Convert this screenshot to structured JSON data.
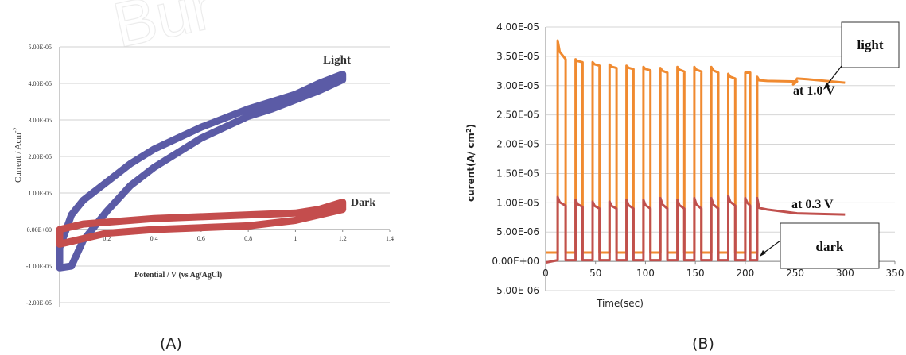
{
  "chart_data": [
    {
      "panel": "(A)",
      "type": "line",
      "xlabel": "Potential / V (vs Ag/AgCl)",
      "ylabel": "Current / Acm",
      "ylabel_sup": "-2",
      "x_ticks": [
        "0",
        "0.2",
        "0.4",
        "0.6",
        "0.8",
        "1",
        "1.2",
        "1.4"
      ],
      "y_ticks": [
        "5.00E-05",
        "4.00E-05",
        "3.00E-05",
        "2.00E-05",
        "1.00E-05",
        "0.00E+00",
        "-1.00E-05",
        "-2.00E-05"
      ],
      "xlim": [
        0,
        1.4
      ],
      "ylim": [
        -2e-05,
        5e-05
      ],
      "grid": true,
      "annotations": [
        "Light",
        "Dark"
      ],
      "series": [
        {
          "name": "Light",
          "color": "#5b5ba6",
          "forward": [
            [
              0,
              -1.05e-05
            ],
            [
              0.05,
              -1e-05
            ],
            [
              0.1,
              -3e-06
            ],
            [
              0.2,
              5e-06
            ],
            [
              0.3,
              1.2e-05
            ],
            [
              0.4,
              1.7e-05
            ],
            [
              0.5,
              2.1e-05
            ],
            [
              0.6,
              2.5e-05
            ],
            [
              0.7,
              2.8e-05
            ],
            [
              0.8,
              3.1e-05
            ],
            [
              0.9,
              3.3e-05
            ],
            [
              1.0,
              3.55e-05
            ],
            [
              1.1,
              3.8e-05
            ],
            [
              1.2,
              4.1e-05
            ]
          ],
          "reverse": [
            [
              1.2,
              4.25e-05
            ],
            [
              1.1,
              4e-05
            ],
            [
              1.0,
              3.7e-05
            ],
            [
              0.9,
              3.5e-05
            ],
            [
              0.8,
              3.3e-05
            ],
            [
              0.7,
              3.05e-05
            ],
            [
              0.6,
              2.8e-05
            ],
            [
              0.5,
              2.5e-05
            ],
            [
              0.4,
              2.2e-05
            ],
            [
              0.3,
              1.8e-05
            ],
            [
              0.2,
              1.3e-05
            ],
            [
              0.1,
              8e-06
            ],
            [
              0.05,
              4e-06
            ],
            [
              0,
              -5e-06
            ]
          ]
        },
        {
          "name": "Dark",
          "color": "#c44d4d",
          "forward": [
            [
              0,
              -4e-06
            ],
            [
              0.1,
              -2.5e-06
            ],
            [
              0.2,
              -1e-06
            ],
            [
              0.4,
              0.0
            ],
            [
              0.6,
              5e-07
            ],
            [
              0.8,
              1e-06
            ],
            [
              1.0,
              2.5e-06
            ],
            [
              1.1,
              4e-06
            ],
            [
              1.2,
              5.5e-06
            ]
          ],
          "reverse": [
            [
              1.2,
              7.5e-06
            ],
            [
              1.1,
              5.5e-06
            ],
            [
              1.0,
              4.5e-06
            ],
            [
              0.8,
              4e-06
            ],
            [
              0.6,
              3.5e-06
            ],
            [
              0.4,
              3e-06
            ],
            [
              0.2,
              2e-06
            ],
            [
              0.1,
              1.5e-06
            ],
            [
              0,
              0.0
            ]
          ]
        }
      ]
    },
    {
      "panel": "(B)",
      "type": "line",
      "xlabel": "Time(sec)",
      "ylabel": "curent(A/ cm",
      "ylabel_sup": "2",
      "ylabel_tail": ")",
      "x_ticks": [
        "0",
        "50",
        "100",
        "150",
        "200",
        "250",
        "300",
        "350"
      ],
      "y_ticks": [
        "4.00E-05",
        "3.50E-05",
        "3.00E-05",
        "2.50E-05",
        "2.00E-05",
        "1.50E-05",
        "1.00E-05",
        "5.00E-06",
        "0.00E+00",
        "-5.00E-06"
      ],
      "xlim": [
        0,
        350
      ],
      "ylim": [
        -5e-06,
        4e-05
      ],
      "grid": true,
      "annotations": {
        "light": "light",
        "at_1v": "at 1.0 V",
        "at_03v": "at 0.3 V",
        "dark": "dark"
      },
      "series": [
        {
          "name": "at 1.0 V",
          "color": "#f08a30",
          "on_intervals": [
            [
              12,
              20
            ],
            [
              30,
              37
            ],
            [
              47,
              54
            ],
            [
              64,
              71
            ],
            [
              81,
              88
            ],
            [
              98,
              105
            ],
            [
              115,
              122
            ],
            [
              132,
              139
            ],
            [
              149,
              156
            ],
            [
              166,
              173
            ],
            [
              183,
              190
            ],
            [
              200,
              205
            ],
            [
              212,
              300
            ]
          ],
          "peaks": [
            3.77e-05,
            3.45e-05,
            3.4e-05,
            3.36e-05,
            3.34e-05,
            3.32e-05,
            3.3e-05,
            3.32e-05,
            3.32e-05,
            3.32e-05,
            3.2e-05,
            3.22e-05,
            3.15e-05
          ],
          "plateaus": [
            3.45e-05,
            3.4e-05,
            3.34e-05,
            3.3e-05,
            3.28e-05,
            3.26e-05,
            3.22e-05,
            3.24e-05,
            3.24e-05,
            3.22e-05,
            3.12e-05,
            3.22e-05,
            3.05e-05
          ],
          "dark_level": 1.5e-06,
          "start_level": 1.5e-06
        },
        {
          "name": "at 0.3 V",
          "color": "#c0504d",
          "on_intervals": [
            [
              12,
              20
            ],
            [
              30,
              37
            ],
            [
              47,
              54
            ],
            [
              64,
              71
            ],
            [
              81,
              88
            ],
            [
              98,
              105
            ],
            [
              115,
              122
            ],
            [
              132,
              139
            ],
            [
              149,
              156
            ],
            [
              166,
              173
            ],
            [
              183,
              190
            ],
            [
              200,
              205
            ],
            [
              212,
              300
            ]
          ],
          "peaks": [
            1.1e-05,
            1.05e-05,
            1.02e-05,
            1.02e-05,
            1.05e-05,
            1.05e-05,
            1.08e-05,
            1.05e-05,
            1.08e-05,
            1.08e-05,
            1.12e-05,
            1.08e-05,
            1.08e-05
          ],
          "plateaus": [
            9.5e-06,
            9.3e-06,
            9e-06,
            9e-06,
            9e-06,
            9e-06,
            9e-06,
            9e-06,
            9e-06,
            9e-06,
            9.5e-06,
            9.5e-06,
            8e-06
          ],
          "dark_level": 2e-07,
          "start_level": -2e-07
        }
      ]
    }
  ],
  "panel_labels": [
    "(A)",
    "(B)"
  ]
}
